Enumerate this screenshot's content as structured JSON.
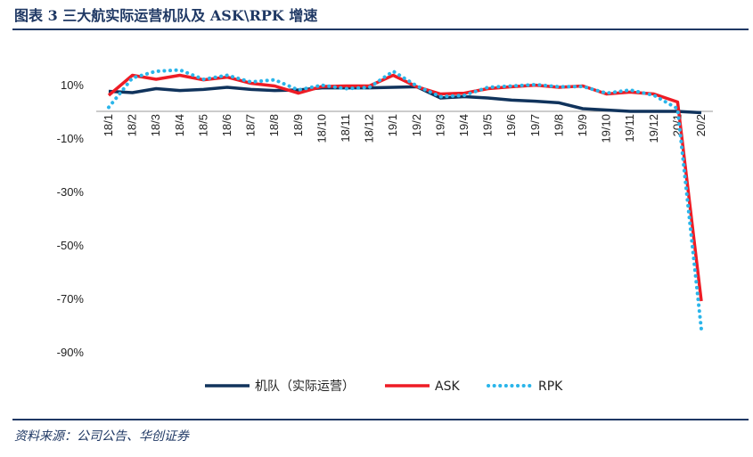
{
  "header": {
    "title": "图表 3 三大航实际运营机队及 ASK\\RPK 增速"
  },
  "footer": {
    "source": "资料来源：公司公告、华创证券"
  },
  "chart_data": {
    "type": "line",
    "title": "",
    "xlabel": "",
    "ylabel": "",
    "ylim": [
      -100,
      20
    ],
    "yticks": [
      10,
      -10,
      -30,
      -50,
      -70,
      -90
    ],
    "ytick_labels": [
      "10%",
      "-10%",
      "-30%",
      "-50%",
      "-70%",
      "-90%"
    ],
    "x_tick_labels": [
      "18/1",
      "18/2",
      "18/3",
      "18/4",
      "18/5",
      "18/6",
      "18/7",
      "18/8",
      "18/9",
      "18/10",
      "18/11",
      "18/12",
      "19/1",
      "19/2",
      "19/3",
      "19/4",
      "19/5",
      "19/6",
      "19/7",
      "19/8",
      "19/9",
      "19/10",
      "19/11",
      "19/12",
      "20/1",
      "20/2"
    ],
    "grid": false,
    "legend_position": "bottom",
    "series": [
      {
        "name": "机队（实际运营）",
        "color": "#10335c",
        "style": "solid",
        "values": [
          7.5,
          7,
          8.5,
          7.8,
          8.2,
          9,
          8.2,
          7.8,
          8,
          8.8,
          8.8,
          8.8,
          9,
          9.2,
          5,
          5.5,
          5,
          4.2,
          3.8,
          3.2,
          1,
          0.5,
          0,
          0,
          0,
          -0.5
        ]
      },
      {
        "name": "ASK",
        "color": "#ee1c25",
        "style": "solid",
        "values": [
          6,
          13.5,
          12,
          13.5,
          11.8,
          12.8,
          10.5,
          9.5,
          6.8,
          9.3,
          9.5,
          9.5,
          13.5,
          9.2,
          6.5,
          6.8,
          8.5,
          9.2,
          9.8,
          9,
          9.5,
          6.5,
          7.2,
          6.5,
          3.5,
          -71
        ]
      },
      {
        "name": "RPK",
        "color": "#2ab5ea",
        "style": "dotted",
        "values": [
          1.5,
          12.5,
          15,
          15.5,
          12,
          13.5,
          11,
          11.8,
          8,
          9.8,
          8.5,
          9,
          15,
          9.5,
          5.5,
          6,
          9,
          9.5,
          10,
          9.2,
          9.3,
          6.8,
          8,
          6,
          1,
          -81.5
        ]
      }
    ]
  }
}
